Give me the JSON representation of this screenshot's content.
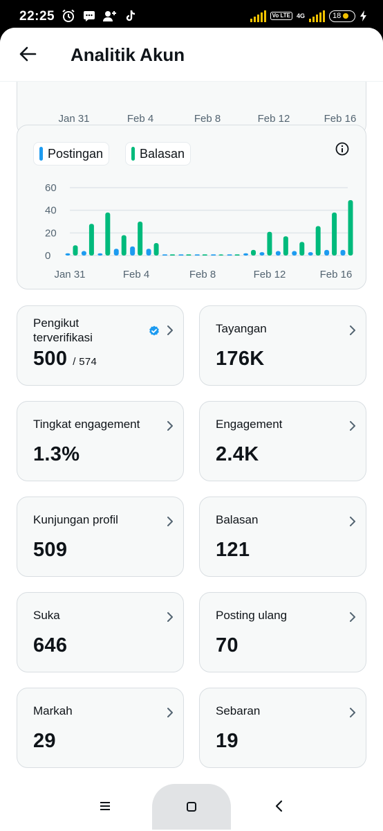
{
  "status_bar": {
    "time": "22:25",
    "network": "4G",
    "volte": "Vo LTE",
    "battery": "18"
  },
  "header": {
    "title": "Analitik Akun"
  },
  "top_axis_labels": [
    "Jan 31",
    "Feb 4",
    "Feb 8",
    "Feb 12",
    "Feb 16"
  ],
  "legend": {
    "posts_label": "Postingan",
    "replies_label": "Balasan"
  },
  "colors": {
    "posts": "#1d9bf0",
    "replies": "#00ba7c"
  },
  "chart_data": {
    "type": "bar",
    "x_labels": [
      "Jan 31",
      "Feb 4",
      "Feb 8",
      "Feb 12",
      "Feb 16"
    ],
    "y_ticks": [
      "60",
      "40",
      "20",
      "0"
    ],
    "ylim": [
      0,
      60
    ],
    "grid": true,
    "series": [
      {
        "name": "Postingan",
        "values": [
          2,
          4,
          2,
          6,
          8,
          6,
          0,
          0,
          0,
          0,
          0,
          2,
          3,
          4,
          4,
          3,
          5,
          5
        ]
      },
      {
        "name": "Balasan",
        "values": [
          9,
          28,
          38,
          18,
          30,
          11,
          0,
          0,
          0,
          1,
          0,
          5,
          21,
          17,
          12,
          26,
          38,
          49
        ]
      }
    ]
  },
  "stats": [
    {
      "label": "Pengikut terverifikasi",
      "value": "500",
      "sub": "/ 574",
      "verified": true
    },
    {
      "label": "Tayangan",
      "value": "176K"
    },
    {
      "label": "Tingkat engagement",
      "value": "1.3%"
    },
    {
      "label": "Engagement",
      "value": "2.4K"
    },
    {
      "label": "Kunjungan profil",
      "value": "509"
    },
    {
      "label": "Balasan",
      "value": "121"
    },
    {
      "label": "Suka",
      "value": "646"
    },
    {
      "label": "Posting ulang",
      "value": "70"
    },
    {
      "label": "Markah",
      "value": "29"
    },
    {
      "label": "Sebaran",
      "value": "19"
    }
  ]
}
